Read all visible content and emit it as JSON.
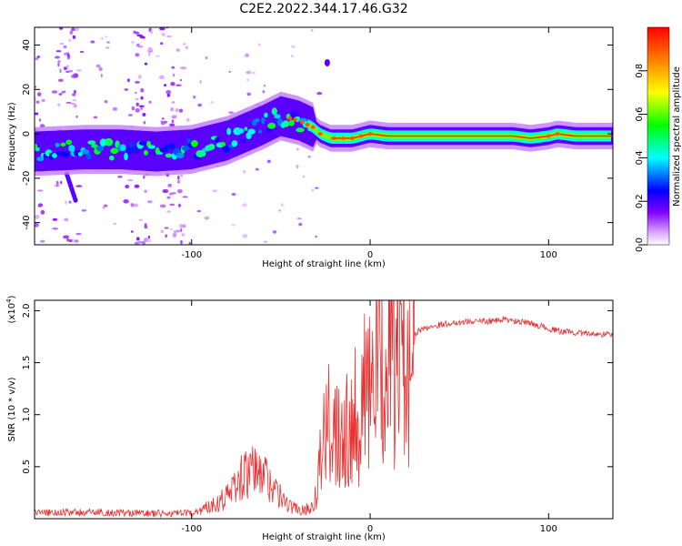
{
  "title": "C2E2.2022.344.17.46.G32",
  "chart_data": [
    {
      "type": "heatmap",
      "name": "spectrogram",
      "xlabel": "Height of straight line (km)",
      "ylabel": "Frequency (Hz)",
      "xlim": [
        -188,
        136
      ],
      "ylim": [
        -50,
        48
      ],
      "xticks": [
        -100,
        0,
        100
      ],
      "xtick_labels": [
        "-100",
        "0",
        "100"
      ],
      "yticks": [
        -40,
        -20,
        0,
        20,
        40
      ],
      "ytick_labels": [
        "-40",
        "-20",
        "0",
        "20",
        "40"
      ],
      "ridge": {
        "x": [
          -188,
          -160,
          -140,
          -120,
          -100,
          -80,
          -60,
          -50,
          -40,
          -32,
          -28,
          -22,
          -10,
          0,
          10,
          20,
          50,
          80,
          90,
          100,
          105,
          115,
          136
        ],
        "y": [
          -8,
          -7,
          -7,
          -8,
          -7,
          -3,
          4,
          8,
          6,
          3,
          0,
          -2,
          -2,
          0,
          -1,
          -1,
          -1,
          -1,
          -2,
          -1,
          0,
          -1,
          -1
        ]
      },
      "scatter_bands_x": [
        -190,
        -170,
        -130,
        -110
      ],
      "streak": {
        "x": [
          -170,
          -165
        ],
        "y": [
          -18,
          -30
        ]
      },
      "blob": {
        "x": -24,
        "y": 32
      },
      "colorbar": {
        "label": "Normalized spectral amplitude",
        "range": [
          0,
          1
        ],
        "ticks": [
          0,
          0.2,
          0.4,
          0.6,
          0.8
        ],
        "tick_labels": [
          "0.0",
          "0.2",
          "0.4",
          "0.6",
          "0.8"
        ]
      }
    },
    {
      "type": "line",
      "name": "snr",
      "xlabel": "Height of straight line (km)",
      "ylabel": "SNR (10 * v/v)",
      "multiplier_label": "(x10",
      "multiplier_exp": "4",
      "multiplier_close": ")",
      "xlim": [
        -188,
        136
      ],
      "ylim": [
        0,
        2.1
      ],
      "xticks": [
        -100,
        0,
        100
      ],
      "xtick_labels": [
        "-100",
        "0",
        "100"
      ],
      "yticks": [
        0.5,
        1.0,
        1.5,
        2.0
      ],
      "ytick_labels": [
        "0.5",
        "1.0",
        "1.5",
        "2.0"
      ],
      "color": "#e83232",
      "envelope": {
        "x": [
          -188,
          -150,
          -120,
          -100,
          -90,
          -80,
          -72,
          -65,
          -58,
          -50,
          -45,
          -38,
          -32,
          -28,
          -24,
          -20,
          -16,
          -12,
          -8,
          -4,
          0,
          5,
          10,
          15,
          20,
          25,
          30,
          40,
          50,
          60,
          70,
          75,
          80,
          90,
          100,
          106,
          110,
          120,
          136
        ],
        "y": [
          0.06,
          0.06,
          0.05,
          0.05,
          0.12,
          0.22,
          0.4,
          0.45,
          0.4,
          0.2,
          0.12,
          0.08,
          0.12,
          0.55,
          0.85,
          0.95,
          0.9,
          0.95,
          1.05,
          1.15,
          1.25,
          1.45,
          1.55,
          1.62,
          1.7,
          1.78,
          1.83,
          1.87,
          1.89,
          1.9,
          1.9,
          1.92,
          1.9,
          1.88,
          1.83,
          1.8,
          1.8,
          1.78,
          1.77
        ]
      }
    }
  ]
}
